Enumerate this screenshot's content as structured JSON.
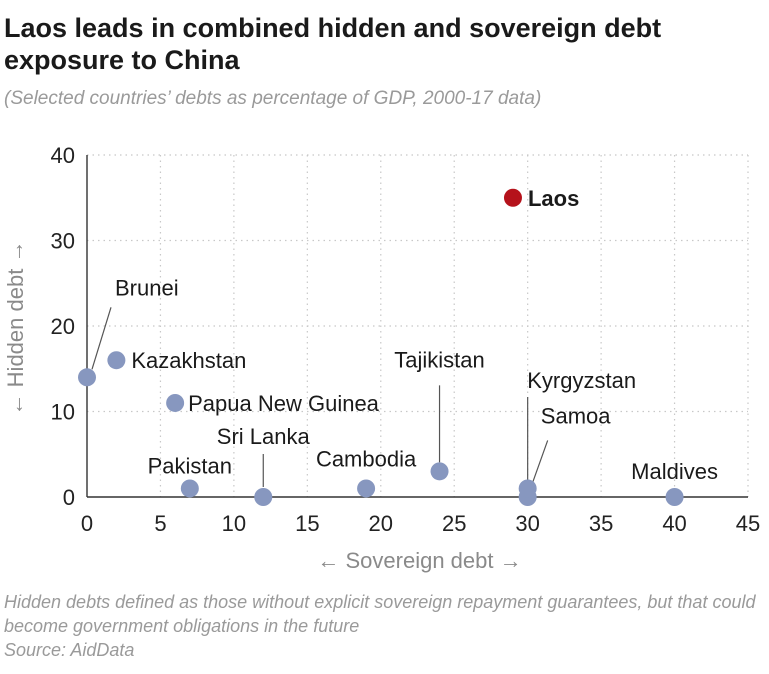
{
  "header": {
    "title": "Laos leads in combined hidden and sovereign debt exposure to China",
    "subtitle": "(Selected countries’ debts as percentage of GDP, 2000-17 data)"
  },
  "footer": {
    "note": "Hidden debts defined as those without explicit sovereign repayment guarantees, but that could become government obligations in the future",
    "source": "Source: AidData"
  },
  "colors": {
    "point": "#8797bf",
    "highlight": "#b5121b",
    "grid": "#c8c8c8",
    "axis_label": "#8a8a8a"
  },
  "chart_data": {
    "type": "scatter",
    "xlabel": "Sovereign debt",
    "ylabel": "Hidden debt",
    "xlim": [
      0,
      45
    ],
    "ylim": [
      0,
      40
    ],
    "x_ticks": [
      0,
      5,
      10,
      15,
      20,
      25,
      30,
      35,
      40,
      45
    ],
    "y_ticks": [
      0,
      10,
      20,
      30,
      40
    ],
    "grid": true,
    "points": [
      {
        "label": "Laos",
        "x": 29,
        "y": 35,
        "highlight": true
      },
      {
        "label": "Brunei",
        "x": 0,
        "y": 14
      },
      {
        "label": "Kazakhstan",
        "x": 2,
        "y": 16
      },
      {
        "label": "Papua New Guinea",
        "x": 6,
        "y": 11
      },
      {
        "label": "Pakistan",
        "x": 7,
        "y": 1
      },
      {
        "label": "Sri Lanka",
        "x": 12,
        "y": 0
      },
      {
        "label": "Cambodia",
        "x": 19,
        "y": 1
      },
      {
        "label": "Tajikistan",
        "x": 24,
        "y": 3
      },
      {
        "label": "Kyrgyzstan",
        "x": 30,
        "y": 0
      },
      {
        "label": "Samoa",
        "x": 30,
        "y": 1
      },
      {
        "label": "Maldives",
        "x": 40,
        "y": 0
      }
    ]
  }
}
